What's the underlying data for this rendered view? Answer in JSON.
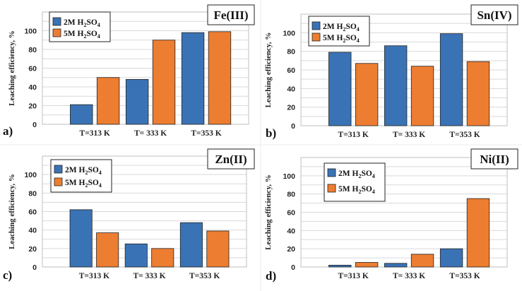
{
  "colors": {
    "series1": "#3a73b5",
    "series2": "#ed7d31",
    "bar_stroke": "#222222"
  },
  "legend_labels": [
    "2M H2SO4",
    "5M H2SO4"
  ],
  "chart_data": [
    {
      "type": "bar",
      "panel_letter": "a)",
      "title": "Fe(III)",
      "ylabel": "Leaching efficiency, %",
      "categories": [
        "T=313 K",
        "T= 333 K",
        "T=353 K"
      ],
      "ylim": [
        0,
        120
      ],
      "yticks": [
        0,
        20,
        40,
        60,
        80,
        100
      ],
      "grid": true,
      "legend_position": "top-left",
      "series": [
        {
          "name": "2M H2SO4",
          "values": [
            21,
            48,
            98
          ]
        },
        {
          "name": "5M H2SO4",
          "values": [
            50,
            90,
            99
          ]
        }
      ]
    },
    {
      "type": "bar",
      "panel_letter": "b)",
      "title": "Sn(IV)",
      "ylabel": "Leaching efficiency, %",
      "categories": [
        "T=313 K",
        "T= 333 K",
        "T=353 K"
      ],
      "ylim": [
        0,
        120
      ],
      "yticks": [
        0,
        20,
        40,
        60,
        80,
        100
      ],
      "grid": true,
      "legend_position": "top-left",
      "series": [
        {
          "name": "2M H2SO4",
          "values": [
            79,
            86,
            99
          ]
        },
        {
          "name": "5M H2SO4",
          "values": [
            67,
            64,
            69
          ]
        }
      ]
    },
    {
      "type": "bar",
      "panel_letter": "c)",
      "title": "Zn(II)",
      "ylabel": "Leaching efficiency, %",
      "categories": [
        "T=313 K",
        "T= 333 K",
        "T=353 K"
      ],
      "ylim": [
        0,
        120
      ],
      "yticks": [
        0,
        20,
        40,
        60,
        80,
        100
      ],
      "grid": true,
      "legend_position": "top-left",
      "series": [
        {
          "name": "2M H2SO4",
          "values": [
            62,
            25,
            48
          ]
        },
        {
          "name": "5M H2SO4",
          "values": [
            37,
            20,
            39
          ]
        }
      ]
    },
    {
      "type": "bar",
      "panel_letter": "d)",
      "title": "Ni(II)",
      "ylabel": "Leaching efficiency, %",
      "categories": [
        "T=313 K",
        "T= 333 K",
        "T=353 K"
      ],
      "ylim": [
        0,
        120
      ],
      "yticks": [
        0,
        20,
        40,
        60,
        80,
        100
      ],
      "grid": true,
      "legend_position": "top-left",
      "series": [
        {
          "name": "2M H2SO4",
          "values": [
            2,
            4,
            20
          ]
        },
        {
          "name": "5M H2SO4",
          "values": [
            5,
            14,
            75
          ]
        }
      ]
    }
  ]
}
